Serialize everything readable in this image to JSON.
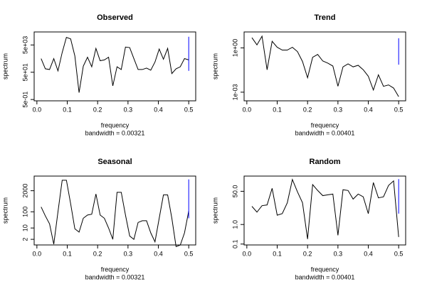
{
  "chart_data": [
    {
      "type": "line",
      "title": "Observed",
      "xlabel": "frequency",
      "ylabel": "spectrum",
      "subtitle": "bandwidth = 0.00321",
      "log_y": true,
      "xlim": [
        -0.009,
        0.523
      ],
      "ylim": [
        0.4,
        45000
      ],
      "xticks": [
        {
          "value": 0,
          "label": "0.0"
        },
        0.1,
        0.2,
        0.3,
        0.4,
        0.5
      ],
      "yticks": [
        {
          "value": 0.5,
          "label": "5e-01"
        },
        {
          "value": 50,
          "label": "5e+01"
        },
        {
          "value": 5000,
          "label": "5e+03"
        }
      ],
      "x": [
        0.0139,
        0.0278,
        0.0417,
        0.0556,
        0.0694,
        0.0833,
        0.0972,
        0.1111,
        0.125,
        0.1389,
        0.1528,
        0.1667,
        0.1806,
        0.1944,
        0.2083,
        0.2222,
        0.2361,
        0.25,
        0.2639,
        0.2778,
        0.2917,
        0.3056,
        0.3194,
        0.3333,
        0.3472,
        0.3611,
        0.375,
        0.3889,
        0.4028,
        0.4167,
        0.4306,
        0.4444,
        0.4583,
        0.4722,
        0.4861,
        0.5
      ],
      "series": [
        {
          "color": "#000000",
          "values": [
            500,
            89,
            79,
            500,
            63,
            1400,
            18000,
            14000,
            790,
            1.6,
            140,
            630,
            126,
            2800,
            350,
            400,
            630,
            5,
            126,
            79,
            3500,
            3200,
            500,
            79,
            79,
            100,
            71,
            280,
            2500,
            450,
            2800,
            40,
            89,
            126,
            500,
            400
          ]
        }
      ],
      "ci": {
        "x": 0.5,
        "low": 63,
        "high": 20000,
        "color": "#0000ff"
      }
    },
    {
      "type": "line",
      "title": "Trend",
      "xlabel": "frequency",
      "ylabel": "spectrum",
      "subtitle": "bandwidth = 0.00401",
      "log_y": true,
      "xlim": [
        -0.009,
        0.523
      ],
      "ylim": [
        0.00026,
        12
      ],
      "xticks": [
        {
          "value": 0,
          "label": "0.0"
        },
        0.1,
        0.2,
        0.3,
        0.4,
        0.5
      ],
      "yticks": [
        {
          "value": 0.001,
          "label": "1e-03"
        },
        {
          "value": 1,
          "label": "1e+00"
        }
      ],
      "x": [
        0.0167,
        0.0333,
        0.05,
        0.0667,
        0.0833,
        0.1,
        0.1167,
        0.1333,
        0.15,
        0.1667,
        0.1833,
        0.2,
        0.2167,
        0.2333,
        0.25,
        0.2667,
        0.2833,
        0.3,
        0.3167,
        0.3333,
        0.35,
        0.3667,
        0.3833,
        0.4,
        0.4167,
        0.4333,
        0.45,
        0.4667,
        0.4833,
        0.5
      ],
      "series": [
        {
          "color": "#000000",
          "values": [
            4.9,
            1.6,
            6.2,
            0.033,
            2.8,
            1.1,
            0.71,
            0.71,
            1.1,
            0.56,
            0.12,
            0.0095,
            0.23,
            0.36,
            0.13,
            0.093,
            0.059,
            0.0025,
            0.052,
            0.083,
            0.052,
            0.066,
            0.033,
            0.012,
            0.0014,
            0.015,
            0.0025,
            0.0031,
            0.0019,
            0.0005
          ]
        }
      ],
      "ci": {
        "x": 0.5,
        "low": 0.073,
        "high": 4.5,
        "color": "#0000ff"
      }
    },
    {
      "type": "line",
      "title": "Seasonal",
      "xlabel": "frequency",
      "ylabel": "spectrum",
      "subtitle": "bandwidth = 0.00321",
      "log_y": true,
      "xlim": [
        -0.009,
        0.523
      ],
      "ylim": [
        0.9,
        16000
      ],
      "xticks": [
        {
          "value": 0,
          "label": "0.0"
        },
        0.1,
        0.2,
        0.3,
        0.4,
        0.5
      ],
      "yticks": [
        2,
        10,
        100,
        2000
      ],
      "x": [
        0.0139,
        0.0278,
        0.0417,
        0.0556,
        0.0694,
        0.0833,
        0.0972,
        0.1111,
        0.125,
        0.1389,
        0.1528,
        0.1667,
        0.1806,
        0.1944,
        0.2083,
        0.2222,
        0.2361,
        0.25,
        0.2639,
        0.2778,
        0.2917,
        0.3056,
        0.3194,
        0.3333,
        0.3472,
        0.3611,
        0.375,
        0.3889,
        0.4028,
        0.4167,
        0.4306,
        0.4444,
        0.4583,
        0.4722,
        0.4861,
        0.5
      ],
      "series": [
        {
          "color": "#000000",
          "values": [
            200,
            56,
            18,
            1,
            100,
            8900,
            8900,
            320,
            8.9,
            5.6,
            40,
            63,
            71,
            1260,
            63,
            40,
            10,
            2,
            1600,
            1600,
            63,
            3.2,
            2,
            22,
            28,
            28,
            5,
            1.4,
            40,
            1100,
            1100,
            40,
            0.71,
            0.89,
            5,
            112
          ]
        }
      ],
      "ci": {
        "x": 0.5,
        "low": 40,
        "high": 10000,
        "color": "#0000ff"
      }
    },
    {
      "type": "line",
      "title": "Random",
      "xlabel": "frequency",
      "ylabel": "spectrum",
      "subtitle": "bandwidth = 0.00401",
      "log_y": true,
      "xlim": [
        -0.009,
        0.523
      ],
      "ylim": [
        0.09,
        300
      ],
      "xticks": [
        {
          "value": 0,
          "label": "0.0"
        },
        0.1,
        0.2,
        0.3,
        0.4,
        0.5
      ],
      "yticks": [
        0.1,
        {
          "value": 1,
          "label": "1.0"
        },
        {
          "value": 50,
          "label": "50.0"
        }
      ],
      "x": [
        0.0167,
        0.0333,
        0.05,
        0.0667,
        0.0833,
        0.1,
        0.1167,
        0.1333,
        0.15,
        0.1667,
        0.1833,
        0.2,
        0.2167,
        0.2333,
        0.25,
        0.2667,
        0.2833,
        0.3,
        0.3167,
        0.3333,
        0.35,
        0.3667,
        0.3833,
        0.4,
        0.4167,
        0.4333,
        0.45,
        0.4667,
        0.4833,
        0.5
      ],
      "series": [
        {
          "color": "#000000",
          "values": [
            8.5,
            4.3,
            9.2,
            10,
            71,
            3,
            3.6,
            13,
            200,
            47,
            13,
            0.18,
            110,
            55,
            30,
            33,
            36,
            0.28,
            60,
            55,
            20,
            36,
            26,
            3.6,
            140,
            23,
            26,
            100,
            170,
            0.23
          ]
        }
      ],
      "ci": {
        "x": 0.5,
        "low": 3.6,
        "high": 210,
        "color": "#0000ff"
      }
    }
  ]
}
